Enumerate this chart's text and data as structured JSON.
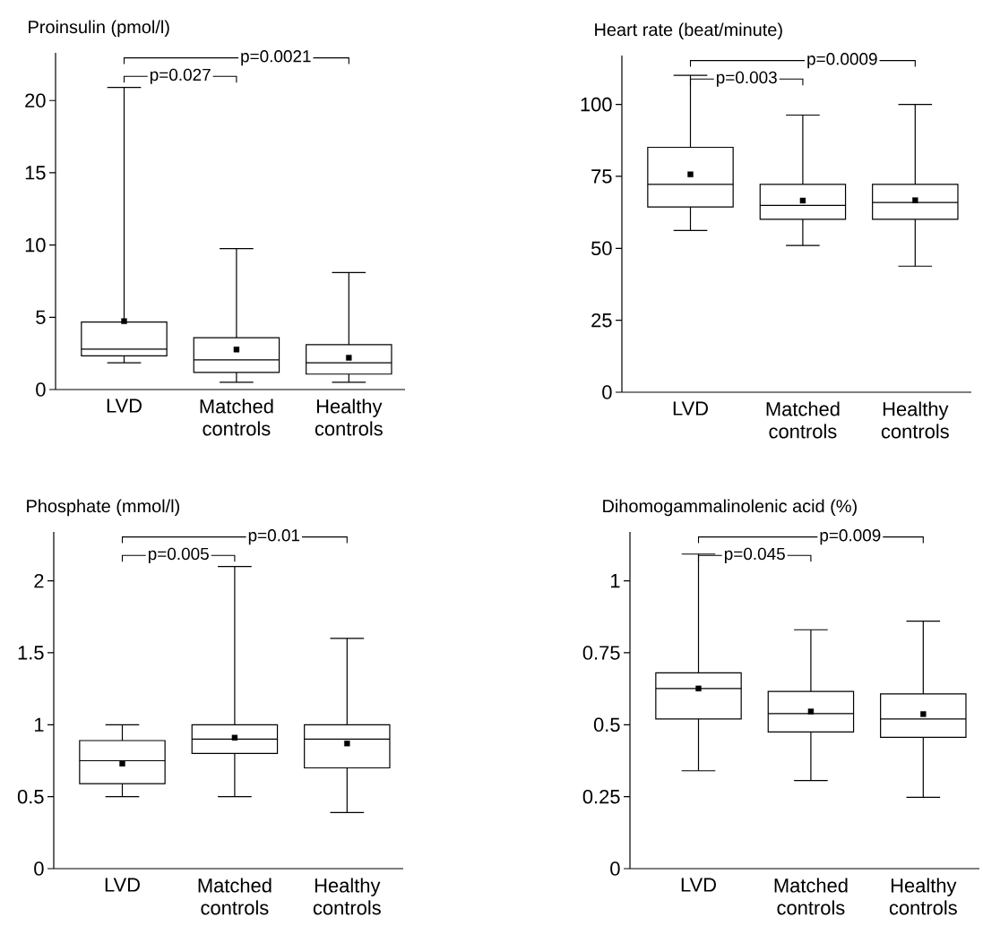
{
  "chart_data": [
    {
      "type": "box",
      "title": "Proinsulin (pmol/l)",
      "categories": [
        "LVD",
        "Matched controls",
        "Healthy controls"
      ],
      "ylim": [
        0,
        23.3
      ],
      "yticks": [
        0,
        5,
        10,
        15,
        20
      ],
      "boxes": [
        {
          "low": 1.85,
          "q1": 2.33,
          "median": 2.8,
          "q3": 4.67,
          "high": 20.9,
          "mean": 4.73
        },
        {
          "low": 0.5,
          "q1": 1.18,
          "median": 2.05,
          "q3": 3.58,
          "high": 9.75,
          "mean": 2.77
        },
        {
          "low": 0.5,
          "q1": 1.07,
          "median": 1.85,
          "q3": 3.1,
          "high": 8.1,
          "mean": 2.2
        }
      ],
      "annotations": [
        "p=0.027",
        "p=0.0021"
      ]
    },
    {
      "type": "box",
      "title": "Heart rate (beat/minute)",
      "categories": [
        "LVD",
        "Matched controls",
        "Healthy controls"
      ],
      "ylim": [
        0,
        117
      ],
      "yticks": [
        0,
        25,
        50,
        75,
        100
      ],
      "boxes": [
        {
          "low": 56.2,
          "q1": 64.4,
          "median": 72.2,
          "q3": 85.1,
          "high": 110.1,
          "mean": 75.7
        },
        {
          "low": 51,
          "q1": 60.1,
          "median": 64.9,
          "q3": 72.2,
          "high": 96.3,
          "mean": 66.6
        },
        {
          "low": 43.8,
          "q1": 60.1,
          "median": 65.9,
          "q3": 72.2,
          "high": 100,
          "mean": 66.7
        }
      ],
      "annotations": [
        "p=0.003",
        "p=0.0009"
      ]
    },
    {
      "type": "box",
      "title": "Phosphate (mmol/l)",
      "categories": [
        "LVD",
        "Matched controls",
        "Healthy controls"
      ],
      "ylim": [
        0,
        2.34
      ],
      "yticks": [
        0,
        0.5,
        1,
        1.5,
        2
      ],
      "boxes": [
        {
          "low": 0.5,
          "q1": 0.59,
          "median": 0.75,
          "q3": 0.89,
          "high": 1.0,
          "mean": 0.73
        },
        {
          "low": 0.5,
          "q1": 0.8,
          "median": 0.9,
          "q3": 1.0,
          "high": 2.1,
          "mean": 0.91
        },
        {
          "low": 0.39,
          "q1": 0.7,
          "median": 0.9,
          "q3": 1.0,
          "high": 1.6,
          "mean": 0.87
        }
      ],
      "annotations": [
        "p=0.005",
        "p=0.01"
      ]
    },
    {
      "type": "box",
      "title": "Dihomogammalinolenic acid (%)",
      "categories": [
        "LVD",
        "Matched controls",
        "Healthy controls"
      ],
      "ylim": [
        0,
        1.17
      ],
      "yticks": [
        0,
        0.25,
        0.5,
        0.75,
        1
      ],
      "boxes": [
        {
          "low": 0.34,
          "q1": 0.52,
          "median": 0.626,
          "q3": 0.68,
          "high": 1.093,
          "mean": 0.626
        },
        {
          "low": 0.306,
          "q1": 0.475,
          "median": 0.539,
          "q3": 0.616,
          "high": 0.83,
          "mean": 0.546
        },
        {
          "low": 0.248,
          "q1": 0.456,
          "median": 0.52,
          "q3": 0.607,
          "high": 0.86,
          "mean": 0.537
        }
      ],
      "annotations": [
        "p=0.045",
        "p=0.009"
      ]
    }
  ]
}
